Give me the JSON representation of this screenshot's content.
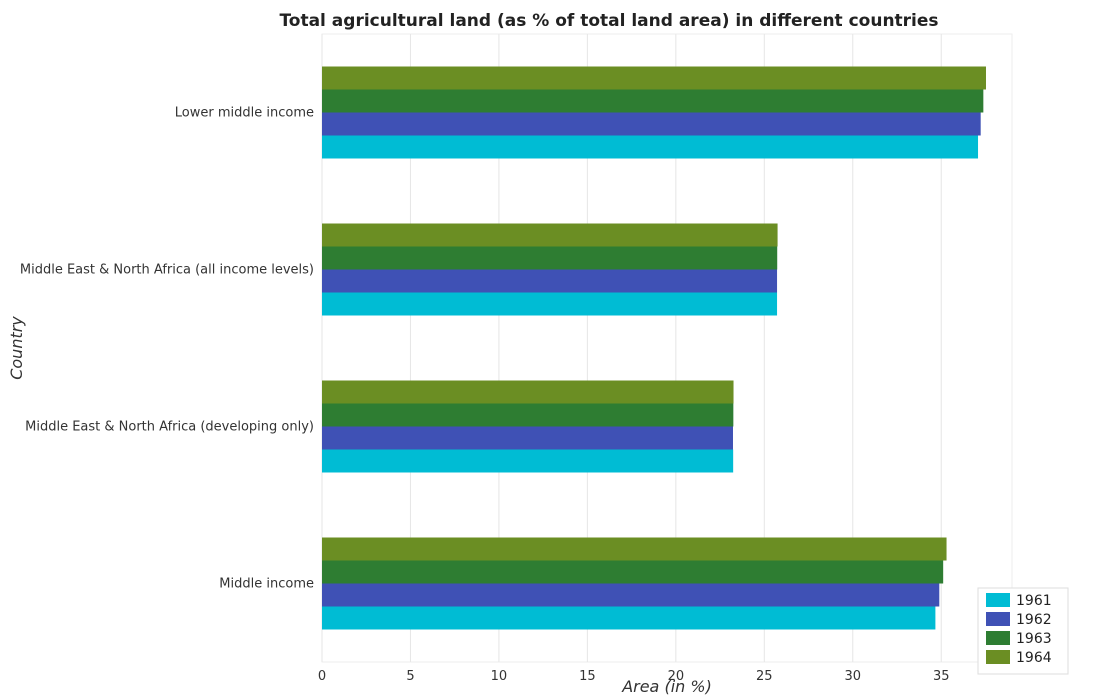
{
  "chart_data": {
    "type": "bar",
    "orientation": "horizontal",
    "title": "Total agricultural land (as % of total land area) in different countries",
    "xlabel": "Area (in %)",
    "ylabel": "Country",
    "xlim": [
      0,
      39
    ],
    "xticks": [
      0,
      5,
      10,
      15,
      20,
      25,
      30,
      35
    ],
    "grid": true,
    "legend_position": "bottom-right",
    "categories": [
      "Lower middle income",
      "Middle East & North Africa (all income levels)",
      "Middle East & North Africa (developing only)",
      "Middle income"
    ],
    "series": [
      {
        "name": "1961",
        "color": "#00bcd4",
        "values": [
          37.08,
          25.72,
          23.24,
          34.67
        ]
      },
      {
        "name": "1962",
        "color": "#3f51b5",
        "values": [
          37.23,
          25.72,
          23.23,
          34.89
        ]
      },
      {
        "name": "1963",
        "color": "#2e7d32",
        "values": [
          37.38,
          25.73,
          23.25,
          35.11
        ]
      },
      {
        "name": "1964",
        "color": "#6b8e23",
        "values": [
          37.53,
          25.75,
          23.26,
          35.3
        ]
      }
    ]
  }
}
